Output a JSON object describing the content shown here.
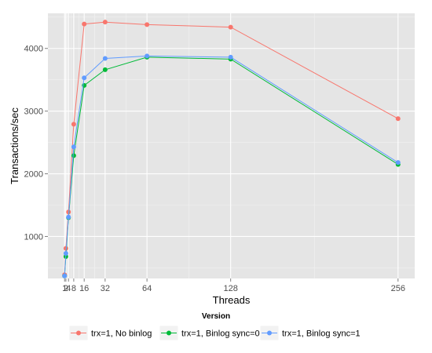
{
  "chart_data": {
    "type": "line",
    "xlabel": "Threads",
    "ylabel": "Transactions/sec",
    "x_ticks": [
      1,
      2,
      4,
      8,
      16,
      32,
      64,
      128,
      256
    ],
    "x_tick_labels": [
      "1",
      "2",
      "4",
      "8",
      "16",
      "32",
      "64",
      "128",
      "256"
    ],
    "y_ticks": [
      1000,
      2000,
      3000,
      4000
    ],
    "y_tick_labels": [
      "1000",
      "2000",
      "3000",
      "4000"
    ],
    "xlim": [
      -11.75,
      268.75
    ],
    "ylim": [
      330,
      4560
    ],
    "grid": true,
    "legend": {
      "title": "Version",
      "placement": "bottom"
    },
    "x": [
      1,
      2,
      4,
      8,
      16,
      32,
      64,
      128,
      256
    ],
    "series": [
      {
        "name": "trx=1, No binlog",
        "color": "#F8766D",
        "values": [
          390,
          810,
          1390,
          2790,
          4390,
          4420,
          4380,
          4340,
          2880
        ]
      },
      {
        "name": "trx=1, Binlog sync=0",
        "color": "#00BA38",
        "values": [
          370,
          680,
          1300,
          2290,
          3410,
          3660,
          3860,
          3830,
          2150
        ]
      },
      {
        "name": "trx=1, Binlog sync=1",
        "color": "#619CFF",
        "values": [
          370,
          730,
          1310,
          2430,
          3530,
          3840,
          3880,
          3860,
          2180
        ]
      }
    ]
  }
}
